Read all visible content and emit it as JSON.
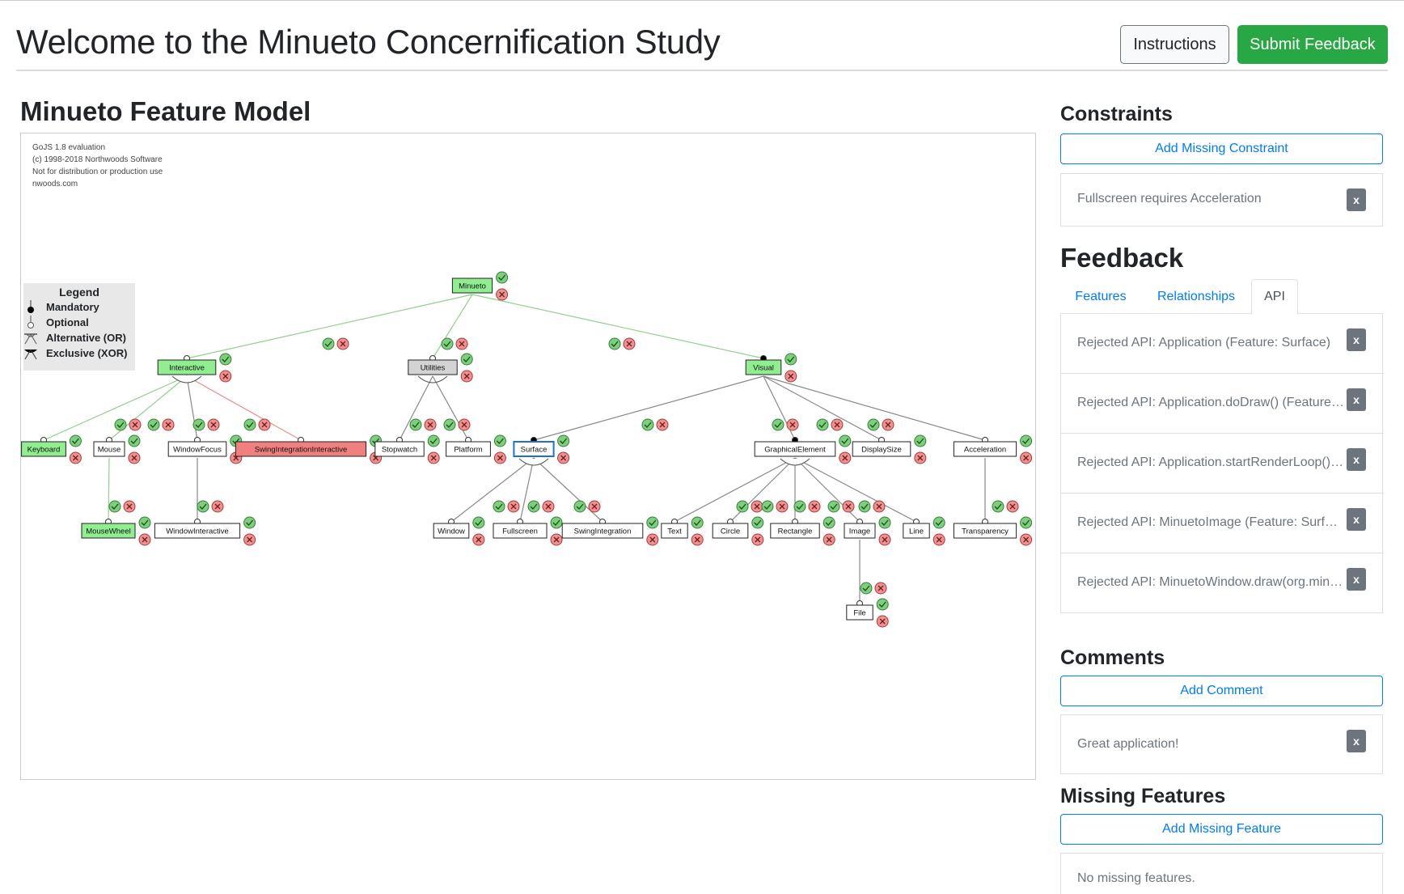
{
  "header": {
    "title": "Welcome to the Minueto Concernification Study",
    "instructions_label": "Instructions",
    "submit_label": "Submit Feedback"
  },
  "model": {
    "title": "Minueto Feature Model",
    "watermark": [
      "GoJS 1.8 evaluation",
      "(c) 1998-2018 Northwoods Software",
      "Not for distribution or production use",
      "nwoods.com"
    ],
    "legend": {
      "title": "Legend",
      "items": [
        "Mandatory",
        "Optional",
        "Alternative (OR)",
        "Exclusive (XOR)"
      ]
    },
    "features": {
      "minueto": "Minueto",
      "interactive": "Interactive",
      "utilities": "Utilities",
      "visual": "Visual",
      "keyboard": "Keyboard",
      "mouse": "Mouse",
      "window_focus": "WindowFocus",
      "swing_integration_interactive": "SwingIntegrationInteractive",
      "stopwatch": "Stopwatch",
      "platform": "Platform",
      "surface": "Surface",
      "graphical_element": "GraphicalElement",
      "display_size": "DisplaySize",
      "acceleration": "Acceleration",
      "mouse_wheel": "MouseWheel",
      "window_interactive": "WindowInteractive",
      "window": "Window",
      "fullscreen": "Fullscreen",
      "swing_integration": "SwingIntegration",
      "text": "Text",
      "circle": "Circle",
      "rectangle": "Rectangle",
      "image": "Image",
      "line": "Line",
      "transparency": "Transparency",
      "file": "File"
    },
    "colors": {
      "accepted": "#90ee90",
      "rejected": "#f08080",
      "unreviewed": "#ffffff",
      "neutral": "#d3d3d3",
      "selected_border": "#1e6fd9"
    }
  },
  "constraints": {
    "title": "Constraints",
    "add_label": "Add Missing Constraint",
    "items": [
      {
        "text": "Fullscreen requires Acceleration",
        "remove": "x"
      }
    ]
  },
  "feedback": {
    "title": "Feedback",
    "tabs": [
      "Features",
      "Relationships",
      "API"
    ],
    "active_tab": "API",
    "items": [
      {
        "text": "Rejected API: Application (Feature: Surface)",
        "remove": "x"
      },
      {
        "text": "Rejected API: Application.doDraw() (Feature: Surface)",
        "remove": "x"
      },
      {
        "text": "Rejected API: Application.startRenderLoop() (Feature: Surface)",
        "remove": "x"
      },
      {
        "text": "Rejected API: MinuetoImage (Feature: Surface)",
        "remove": "x"
      },
      {
        "text": "Rejected API: MinuetoWindow.draw(org.minueto...)",
        "remove": "x"
      }
    ]
  },
  "comments": {
    "title": "Comments",
    "add_label": "Add Comment",
    "items": [
      {
        "text": "Great application!",
        "remove": "x"
      }
    ]
  },
  "missing_features": {
    "title": "Missing Features",
    "add_label": "Add Missing Feature",
    "empty_text": "No missing features."
  }
}
